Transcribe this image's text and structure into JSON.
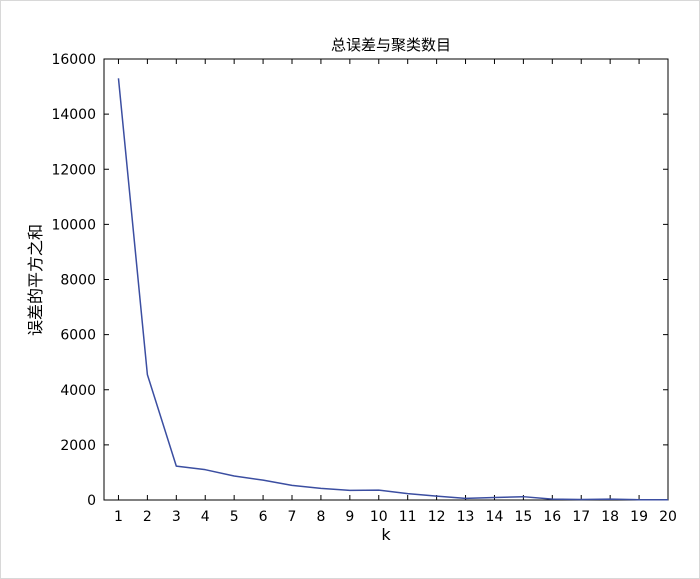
{
  "chart_data": {
    "type": "line",
    "title": "总误差与聚类数目",
    "xlabel": "k",
    "ylabel": "误差的平方之和",
    "xlim": [
      0.5,
      20
    ],
    "ylim": [
      0,
      16000
    ],
    "x_ticks": [
      1,
      2,
      3,
      4,
      5,
      6,
      7,
      8,
      9,
      10,
      11,
      12,
      13,
      14,
      15,
      16,
      17,
      18,
      19,
      20
    ],
    "y_ticks": [
      0,
      2000,
      4000,
      6000,
      8000,
      10000,
      12000,
      14000,
      16000
    ],
    "grid": false,
    "legend": "none",
    "series": [
      {
        "color": "#3b4ea1",
        "x": [
          1,
          2,
          3,
          4,
          5,
          6,
          7,
          8,
          9,
          10,
          11,
          12,
          13,
          14,
          15,
          16,
          17,
          18,
          19,
          20
        ],
        "y": [
          15300,
          4550,
          1230,
          1100,
          870,
          720,
          530,
          420,
          350,
          360,
          230,
          140,
          60,
          90,
          120,
          30,
          20,
          30,
          10,
          10
        ]
      }
    ]
  }
}
